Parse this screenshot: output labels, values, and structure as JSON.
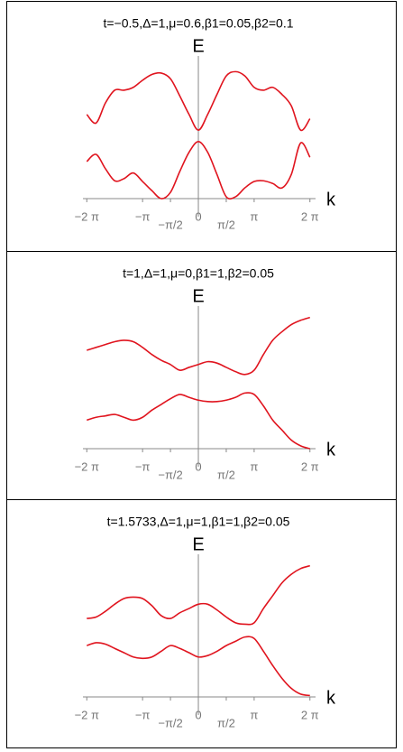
{
  "chart_data": [
    {
      "type": "line",
      "title": "t=−0.5,Δ=1,μ=0.6,β1=0.05,β2=0.1",
      "y_label": "E",
      "x_label": "k",
      "x": [
        -6.283,
        -5.76,
        -5.236,
        -4.712,
        -4.189,
        -3.665,
        -3.142,
        -2.618,
        -2.094,
        -1.571,
        -1.047,
        -0.524,
        0,
        0.524,
        1.047,
        1.571,
        2.094,
        2.618,
        3.142,
        3.665,
        4.189,
        4.712,
        5.236,
        5.76,
        6.283
      ],
      "series": [
        {
          "color": "#e0141e",
          "values": [
            0.59,
            0.53,
            0.67,
            0.76,
            0.76,
            0.78,
            0.83,
            0.87,
            0.88,
            0.84,
            0.72,
            0.59,
            0.48,
            0.59,
            0.73,
            0.86,
            0.89,
            0.86,
            0.78,
            0.76,
            0.78,
            0.73,
            0.65,
            0.48,
            0.56
          ]
        },
        {
          "color": "#e0141e",
          "values": [
            0.26,
            0.31,
            0.21,
            0.125,
            0.14,
            0.18,
            0.12,
            0.056,
            0,
            0.044,
            0.19,
            0.325,
            0.4,
            0.325,
            0.17,
            0.013,
            0.013,
            0.075,
            0.12,
            0.125,
            0.106,
            0.075,
            0.17,
            0.39,
            0.29
          ]
        }
      ],
      "xlim": [
        -6.5,
        6.6
      ],
      "ylim": [
        0,
        1
      ],
      "xticks": [
        {
          "value": -6.283,
          "label": "−2 π"
        },
        {
          "value": -3.142,
          "label": "−π"
        },
        {
          "value": -1.571,
          "label": "−π/2"
        },
        0,
        {
          "value": 1.571,
          "label": "π/2"
        },
        {
          "value": 3.142,
          "label": "π"
        },
        {
          "value": 6.283,
          "label": "2 π"
        }
      ]
    },
    {
      "type": "line",
      "title": "t=1,Δ=1,μ=0,β1=1,β2=0.05",
      "y_label": "E",
      "x_label": "k",
      "x": [
        -6.283,
        -5.76,
        -5.236,
        -4.712,
        -4.189,
        -3.665,
        -3.142,
        -2.618,
        -2.094,
        -1.571,
        -1.047,
        -0.524,
        0,
        0.524,
        1.047,
        1.571,
        2.094,
        2.618,
        3.142,
        3.665,
        4.189,
        4.712,
        5.236,
        5.76,
        6.283
      ],
      "series": [
        {
          "color": "#e0141e",
          "values": [
            0.69,
            0.71,
            0.73,
            0.75,
            0.76,
            0.75,
            0.71,
            0.66,
            0.62,
            0.59,
            0.55,
            0.57,
            0.59,
            0.61,
            0.6,
            0.57,
            0.54,
            0.52,
            0.55,
            0.66,
            0.76,
            0.82,
            0.87,
            0.9,
            0.92
          ]
        },
        {
          "color": "#e0141e",
          "values": [
            0.2,
            0.22,
            0.23,
            0.24,
            0.22,
            0.2,
            0.22,
            0.27,
            0.31,
            0.35,
            0.38,
            0.36,
            0.34,
            0.33,
            0.33,
            0.34,
            0.36,
            0.39,
            0.38,
            0.3,
            0.2,
            0.13,
            0.06,
            0.02,
            0
          ]
        }
      ],
      "xlim": [
        -6.5,
        6.6
      ],
      "ylim": [
        0,
        1
      ],
      "xticks": [
        {
          "value": -6.283,
          "label": "−2 π"
        },
        {
          "value": -3.142,
          "label": "−π"
        },
        {
          "value": -1.571,
          "label": "−π/2"
        },
        0,
        {
          "value": 1.571,
          "label": "π/2"
        },
        {
          "value": 3.142,
          "label": "π"
        },
        {
          "value": 6.283,
          "label": "2 π"
        }
      ]
    },
    {
      "type": "line",
      "title": "t=1.5733,Δ=1,μ=1,β1=1,β2=0.05",
      "y_label": "E",
      "x_label": "k",
      "x": [
        -6.283,
        -5.76,
        -5.236,
        -4.712,
        -4.189,
        -3.665,
        -3.142,
        -2.618,
        -2.094,
        -1.571,
        -1.047,
        -0.524,
        0,
        0.524,
        1.047,
        1.571,
        2.094,
        2.618,
        3.142,
        3.665,
        4.189,
        4.712,
        5.236,
        5.76,
        6.283
      ],
      "series": [
        {
          "color": "#e0141e",
          "values": [
            0.55,
            0.56,
            0.6,
            0.65,
            0.69,
            0.7,
            0.69,
            0.64,
            0.57,
            0.55,
            0.59,
            0.62,
            0.65,
            0.65,
            0.61,
            0.56,
            0.52,
            0.51,
            0.52,
            0.62,
            0.71,
            0.8,
            0.86,
            0.9,
            0.92
          ]
        },
        {
          "color": "#e0141e",
          "values": [
            0.36,
            0.38,
            0.37,
            0.34,
            0.31,
            0.28,
            0.27,
            0.28,
            0.32,
            0.36,
            0.34,
            0.31,
            0.28,
            0.29,
            0.32,
            0.36,
            0.39,
            0.42,
            0.41,
            0.32,
            0.22,
            0.13,
            0.06,
            0.02,
            0.01
          ]
        }
      ],
      "xlim": [
        -6.5,
        6.6
      ],
      "ylim": [
        0,
        1
      ],
      "xticks": [
        {
          "value": -6.283,
          "label": "−2 π"
        },
        {
          "value": -3.142,
          "label": "−π"
        },
        {
          "value": -1.571,
          "label": "−π/2"
        },
        0,
        {
          "value": 1.571,
          "label": "π/2"
        },
        {
          "value": 3.142,
          "label": "π"
        },
        {
          "value": 6.283,
          "label": "2 π"
        }
      ]
    }
  ]
}
